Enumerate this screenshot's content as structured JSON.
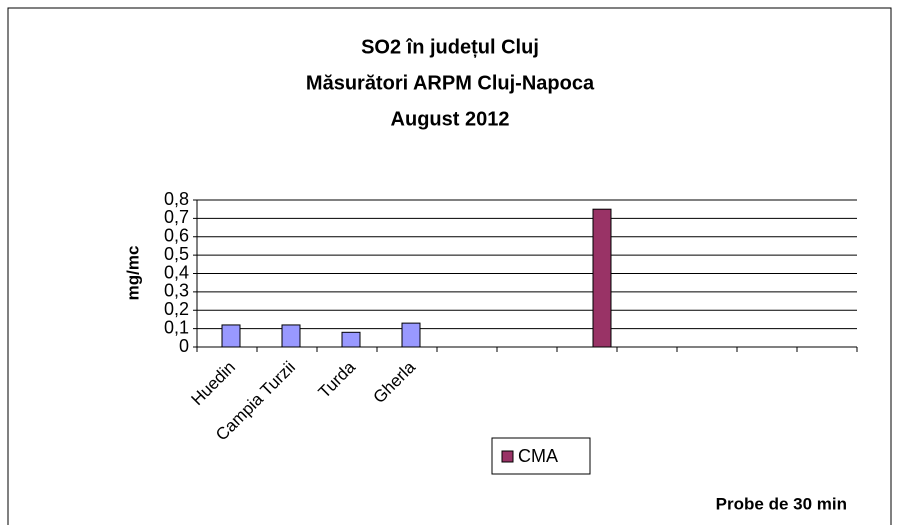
{
  "chart_data": {
    "type": "bar",
    "title": [
      "SO2 în județul Cluj",
      "Măsurători ARPM Cluj-Napoca",
      "August 2012"
    ],
    "y_label": "mg/mc",
    "annotation": "Probe de 30 min",
    "categories": [
      "Huedin",
      "Campia Turzii",
      "Turda",
      "Gherla",
      null,
      null,
      null,
      null,
      null,
      null,
      null
    ],
    "series": [
      {
        "color": "#9999ff",
        "values": [
          0.12,
          0.12,
          0.08,
          0.13,
          null,
          null,
          null,
          null,
          null,
          null,
          null
        ]
      },
      {
        "name": "CMA",
        "color": "#993366",
        "values": [
          null,
          null,
          null,
          null,
          null,
          null,
          0.75,
          null,
          null,
          null,
          null
        ]
      }
    ],
    "ylim": [
      0,
      0.8
    ],
    "yticks": [
      0,
      {
        "value": 0.1,
        "label": "0,1"
      },
      {
        "value": 0.2,
        "label": "0,2"
      },
      {
        "value": 0.3,
        "label": "0,3"
      },
      {
        "value": 0.4,
        "label": "0,4"
      },
      {
        "value": 0.5,
        "label": "0,5"
      },
      {
        "value": 0.6,
        "label": "0,6"
      },
      {
        "value": 0.7,
        "label": "0,7"
      },
      {
        "value": 0.8,
        "label": "0,8"
      }
    ],
    "grid": true
  }
}
